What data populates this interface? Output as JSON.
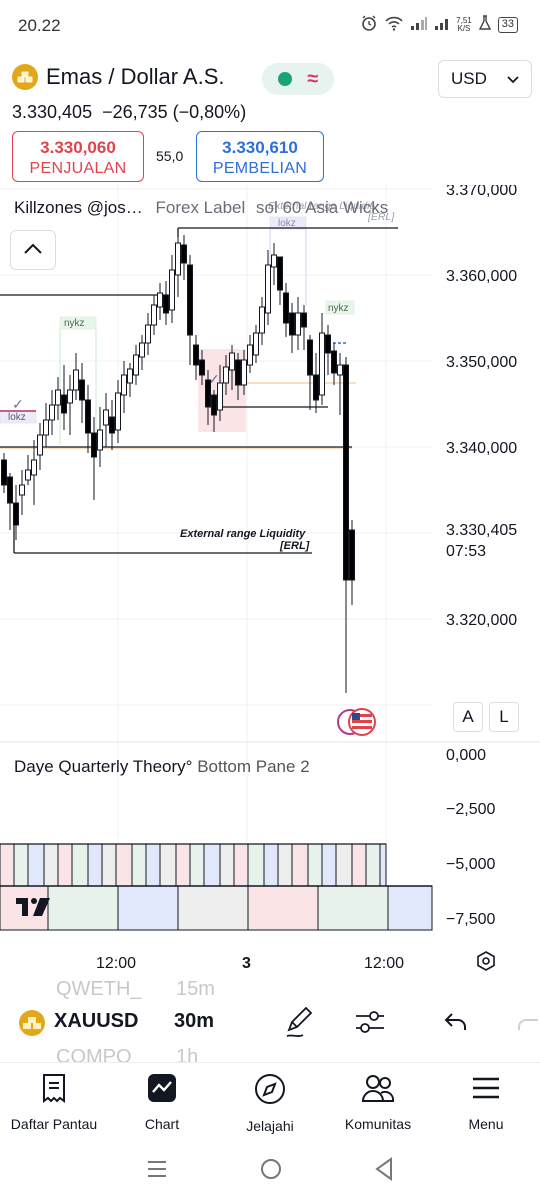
{
  "status_bar": {
    "time": "20.22",
    "net_speed_value": "7,51",
    "net_speed_unit": "K/S",
    "battery": "33"
  },
  "header": {
    "symbol_title": "Emas / Dollar A.S.",
    "currency": "USD",
    "price_line": "3.330,405  −26,735 (−0,80%)",
    "sell": {
      "price": "3.330,060",
      "label": "PENJUALAN"
    },
    "buy": {
      "price": "3.330,610",
      "label": "PEMBELIAN"
    },
    "spread": "55,0"
  },
  "indicators": {
    "killzones": "Killzones @jos…",
    "forex_label": "Forex Label",
    "forex_extra": "sol 60 Asia Wicks"
  },
  "chart": {
    "price_axis": [
      "3.370,000",
      "3.360,000",
      "3.350,000",
      "3.340,000",
      "3.320,000"
    ],
    "current_price": "3.330,405",
    "countdown": "07:53",
    "time_axis": [
      "12:00",
      "3",
      "12:00"
    ],
    "annotations": {
      "erl_top": "External range Liquidity",
      "erl_tag": "[ERL]",
      "erl_bottom": "External range Liquidity",
      "erl_bottom_tag": "[ERL]",
      "nykz_left": "nykz",
      "nykz_right": "nykz",
      "lokz_left": "lokz",
      "lokz_top": "lokz"
    },
    "buttons": {
      "auto": "A",
      "log": "L"
    },
    "pane2": {
      "title": "Daye Quarterly Theory°",
      "subtitle": "Bottom Pane 2",
      "axis": [
        "0,000",
        "−2,500",
        "−5,000",
        "−7,500"
      ]
    },
    "logo": "TV"
  },
  "symbol_bar": {
    "ticker": "XAUUSD",
    "timeframe": "30m",
    "ghost_top_left": "QWETH_",
    "ghost_top_right": "15m",
    "ghost_bottom_left": "COMPO",
    "ghost_bottom_right": "1h"
  },
  "nav": [
    {
      "label": "Daftar Pantau",
      "icon": "watchlist-icon"
    },
    {
      "label": "Chart",
      "icon": "chart-icon"
    },
    {
      "label": "Jelajahi",
      "icon": "compass-icon"
    },
    {
      "label": "Komunitas",
      "icon": "community-icon"
    },
    {
      "label": "Menu",
      "icon": "menu-icon"
    }
  ],
  "colors": {
    "up": "#ffffff",
    "down": "#000000",
    "sell": "#e0434b",
    "buy": "#2e6fd8",
    "accent_gold": "#e3a81a"
  }
}
